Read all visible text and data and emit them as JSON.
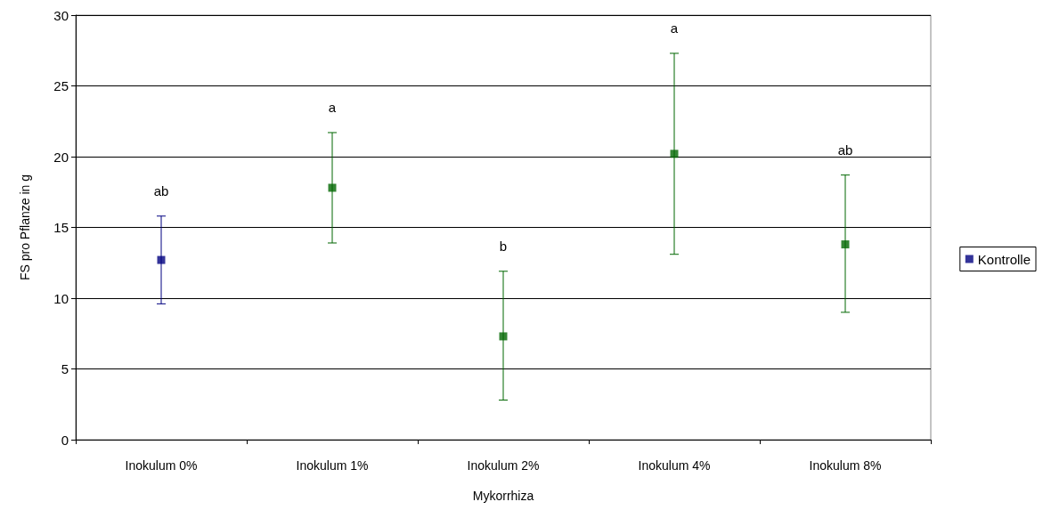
{
  "chart_data": {
    "type": "scatter",
    "xlabel": "Mykorrhiza",
    "ylabel": "FS pro Pflanze in g",
    "categories": [
      "Inokulum 0%",
      "Inokulum 1%",
      "Inokulum 2%",
      "Inokulum 4%",
      "Inokulum 8%"
    ],
    "series": [
      {
        "name": "Kontrolle",
        "color": "#000080",
        "values": [
          12.7,
          null,
          null,
          null,
          null
        ],
        "errors": [
          [
            9.6,
            15.8
          ],
          null,
          null,
          null,
          null
        ]
      },
      {
        "color": "#006600",
        "values": [
          null,
          17.8,
          7.3,
          20.2,
          13.8
        ],
        "errors": [
          null,
          [
            13.9,
            21.7
          ],
          [
            2.8,
            11.9
          ],
          [
            13.1,
            27.3
          ],
          [
            9.0,
            18.7
          ]
        ]
      }
    ],
    "ylim": [
      0,
      30
    ],
    "yticks": [
      0,
      5,
      10,
      15,
      20,
      25,
      30
    ],
    "grid": "y",
    "legend": "right",
    "marker": "square",
    "annotations": [
      "ab",
      "a",
      "b",
      "a",
      "ab"
    ]
  }
}
